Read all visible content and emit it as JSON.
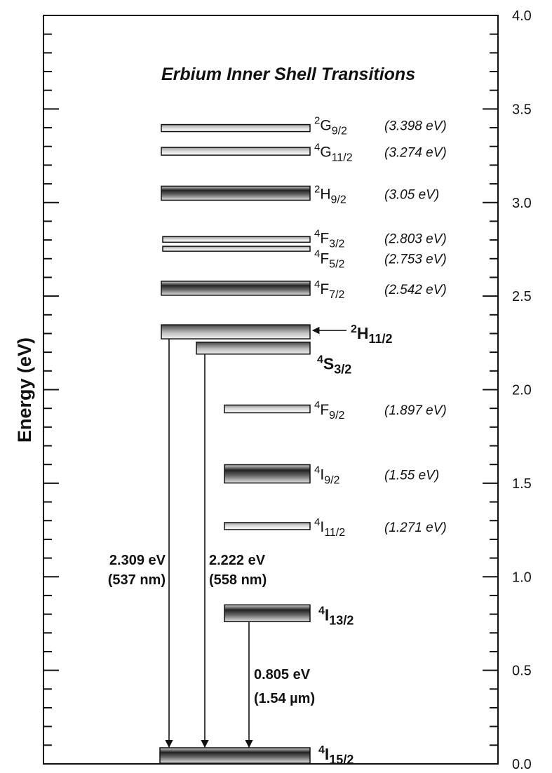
{
  "chart_data": {
    "type": "diagram",
    "title": "Erbium Inner Shell Transitions",
    "ylabel": "Energy (eV)",
    "ylim": [
      0,
      4
    ],
    "y_ticks": [
      "0.0",
      "0.5",
      "1.0",
      "1.5",
      "2.0",
      "2.5",
      "3.0",
      "3.5",
      "4.0"
    ],
    "levels": [
      {
        "term": "4I15/2",
        "sup": "4",
        "letter": "I",
        "sub": "15/2",
        "energy": 0.0,
        "energy_label": "",
        "bold": true
      },
      {
        "term": "4I13/2",
        "sup": "4",
        "letter": "I",
        "sub": "13/2",
        "energy": 0.805,
        "energy_label": "",
        "bold": true
      },
      {
        "term": "4I11/2",
        "sup": "4",
        "letter": "I",
        "sub": "11/2",
        "energy": 1.271,
        "energy_label": "(1.271 eV)",
        "bold": false
      },
      {
        "term": "4I9/2",
        "sup": "4",
        "letter": "I",
        "sub": "9/2",
        "energy": 1.55,
        "energy_label": "(1.55 eV)",
        "bold": false
      },
      {
        "term": "4F9/2",
        "sup": "4",
        "letter": "F",
        "sub": "9/2",
        "energy": 1.897,
        "energy_label": "(1.897 eV)",
        "bold": false
      },
      {
        "term": "4S3/2",
        "sup": "4",
        "letter": "S",
        "sub": "3/2",
        "energy": 2.222,
        "energy_label": "",
        "bold": true
      },
      {
        "term": "2H11/2",
        "sup": "2",
        "letter": "H",
        "sub": "11/2",
        "energy": 2.309,
        "energy_label": "",
        "bold": true
      },
      {
        "term": "4F7/2",
        "sup": "4",
        "letter": "F",
        "sub": "7/2",
        "energy": 2.542,
        "energy_label": "(2.542 eV)",
        "bold": false
      },
      {
        "term": "4F5/2",
        "sup": "4",
        "letter": "F",
        "sub": "5/2",
        "energy": 2.753,
        "energy_label": "(2.753 eV)",
        "bold": false
      },
      {
        "term": "4F3/2",
        "sup": "4",
        "letter": "F",
        "sub": "3/2",
        "energy": 2.803,
        "energy_label": "(2.803 eV)",
        "bold": false
      },
      {
        "term": "2H9/2",
        "sup": "2",
        "letter": "H",
        "sub": "9/2",
        "energy": 3.05,
        "energy_label": "(3.05 eV)",
        "bold": false
      },
      {
        "term": "4G11/2",
        "sup": "4",
        "letter": "G",
        "sub": "11/2",
        "energy": 3.274,
        "energy_label": "(3.274 eV)",
        "bold": false
      },
      {
        "term": "2G9/2",
        "sup": "2",
        "letter": "G",
        "sub": "9/2",
        "energy": 3.398,
        "energy_label": "(3.398 eV)",
        "bold": false
      }
    ],
    "transitions": [
      {
        "from": "2H11/2",
        "to": "4I15/2",
        "line1": "2.309 eV",
        "line2": "(537 nm)"
      },
      {
        "from": "4S3/2",
        "to": "4I15/2",
        "line1": "2.222 eV",
        "line2": "(558 nm)"
      },
      {
        "from": "4I13/2",
        "to": "4I15/2",
        "line1": "0.805 eV",
        "line2": "(1.54 µm)"
      }
    ]
  }
}
